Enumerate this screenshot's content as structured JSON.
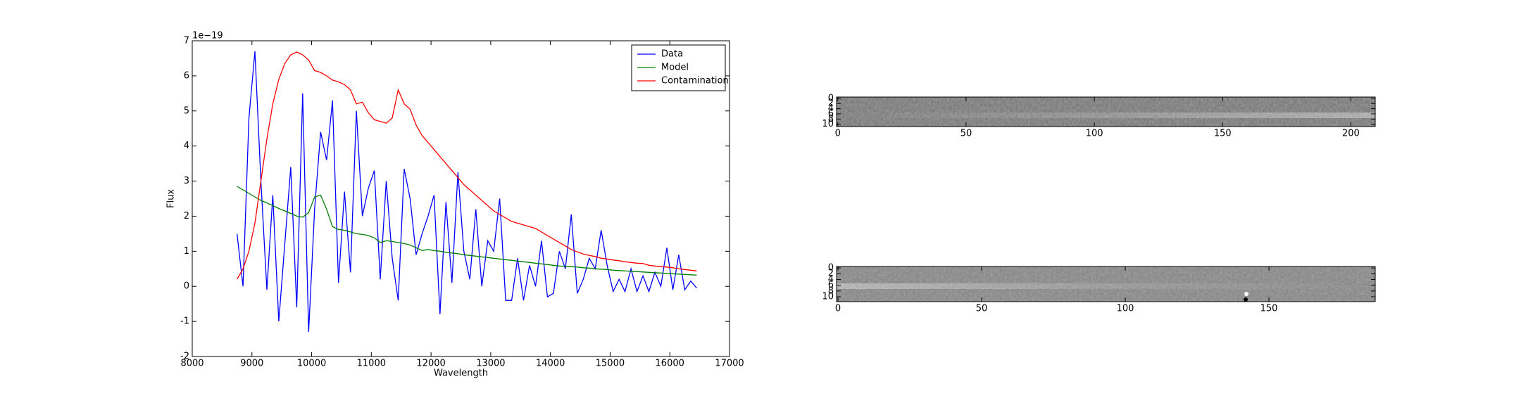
{
  "chart_data": [
    {
      "type": "line",
      "x_label": "Wavelength",
      "y_label": "Flux",
      "y_offset_label": "1e−19",
      "xlim": [
        8000,
        17000
      ],
      "xticks": [
        8000,
        9000,
        10000,
        11000,
        12000,
        13000,
        14000,
        15000,
        16000,
        17000
      ],
      "ylim": [
        -2,
        7
      ],
      "yticks": [
        -2,
        -1,
        0,
        1,
        2,
        3,
        4,
        5,
        6,
        7
      ],
      "legend": "upper right",
      "x": [
        8750,
        8850,
        8950,
        9050,
        9150,
        9250,
        9350,
        9450,
        9550,
        9650,
        9750,
        9850,
        9950,
        10050,
        10150,
        10250,
        10350,
        10450,
        10550,
        10650,
        10750,
        10850,
        10950,
        11050,
        11150,
        11250,
        11350,
        11450,
        11550,
        11650,
        11750,
        11850,
        11950,
        12050,
        12150,
        12250,
        12350,
        12450,
        12550,
        12650,
        12750,
        12850,
        12950,
        13050,
        13150,
        13250,
        13350,
        13450,
        13550,
        13650,
        13750,
        13850,
        13950,
        14050,
        14150,
        14250,
        14350,
        14450,
        14550,
        14650,
        14750,
        14850,
        14950,
        15050,
        15150,
        15250,
        15350,
        15450,
        15550,
        15650,
        15750,
        15850,
        15950,
        16050,
        16150,
        16250,
        16350,
        16450
      ],
      "series": [
        {
          "name": "Data",
          "color": "#0000ff",
          "values": [
            1.5,
            0.0,
            4.8,
            6.7,
            3.0,
            -0.1,
            2.6,
            -1.0,
            1.2,
            3.4,
            -0.6,
            5.5,
            -1.3,
            2.2,
            4.4,
            3.6,
            5.3,
            0.1,
            2.7,
            0.4,
            5.0,
            2.0,
            2.8,
            3.3,
            0.2,
            3.0,
            0.8,
            -0.4,
            3.35,
            2.5,
            0.9,
            1.5,
            2.0,
            2.6,
            -0.8,
            2.4,
            0.1,
            3.25,
            1.0,
            0.2,
            2.2,
            0.0,
            1.3,
            1.0,
            2.5,
            -0.4,
            -0.4,
            0.8,
            -0.4,
            0.6,
            0.0,
            1.3,
            -0.3,
            -0.2,
            1.0,
            0.5,
            2.05,
            -0.2,
            0.2,
            0.8,
            0.5,
            1.6,
            0.6,
            -0.15,
            0.2,
            -0.15,
            0.5,
            -0.15,
            0.3,
            -0.15,
            0.4,
            0.0,
            1.1,
            -0.1,
            0.9,
            -0.1,
            0.15,
            -0.05
          ]
        },
        {
          "name": "Model",
          "color": "#008000",
          "values": [
            2.85,
            2.75,
            2.65,
            2.55,
            2.45,
            2.38,
            2.3,
            2.22,
            2.15,
            2.08,
            2.0,
            1.97,
            2.1,
            2.55,
            2.6,
            2.2,
            1.7,
            1.62,
            1.6,
            1.55,
            1.5,
            1.48,
            1.45,
            1.38,
            1.25,
            1.3,
            1.28,
            1.25,
            1.22,
            1.18,
            1.1,
            1.02,
            1.05,
            1.02,
            1.0,
            0.97,
            0.95,
            0.93,
            0.9,
            0.88,
            0.86,
            0.84,
            0.82,
            0.8,
            0.78,
            0.76,
            0.74,
            0.72,
            0.7,
            0.68,
            0.66,
            0.64,
            0.62,
            0.6,
            0.58,
            0.57,
            0.56,
            0.55,
            0.53,
            0.52,
            0.5,
            0.49,
            0.48,
            0.46,
            0.45,
            0.44,
            0.43,
            0.42,
            0.41,
            0.4,
            0.39,
            0.38,
            0.37,
            0.36,
            0.35,
            0.34,
            0.33,
            0.32
          ]
        },
        {
          "name": "Contamination",
          "color": "#ff0000",
          "values": [
            0.2,
            0.5,
            1.0,
            1.8,
            3.0,
            4.2,
            5.2,
            5.9,
            6.35,
            6.6,
            6.68,
            6.6,
            6.45,
            6.15,
            6.1,
            6.0,
            5.88,
            5.83,
            5.75,
            5.6,
            5.2,
            5.25,
            4.95,
            4.75,
            4.7,
            4.65,
            4.8,
            5.6,
            5.2,
            5.05,
            4.6,
            4.3,
            4.1,
            3.9,
            3.7,
            3.5,
            3.3,
            3.1,
            2.9,
            2.75,
            2.6,
            2.45,
            2.3,
            2.15,
            2.05,
            1.95,
            1.85,
            1.8,
            1.75,
            1.7,
            1.65,
            1.55,
            1.45,
            1.35,
            1.25,
            1.15,
            1.05,
            0.98,
            0.92,
            0.88,
            0.85,
            0.8,
            0.78,
            0.75,
            0.73,
            0.7,
            0.68,
            0.66,
            0.65,
            0.6,
            0.58,
            0.56,
            0.55,
            0.53,
            0.5,
            0.48,
            0.46,
            0.44
          ]
        }
      ]
    },
    {
      "type": "image",
      "xlim": [
        -0.5,
        209.5
      ],
      "xticks": [
        0,
        50,
        100,
        150,
        200
      ],
      "ylim": [
        10.9,
        -0.5
      ],
      "yticks": [
        0,
        2,
        4,
        6,
        8,
        10
      ]
    },
    {
      "type": "image",
      "xlim": [
        -0.5,
        187
      ],
      "xticks": [
        0,
        50,
        100,
        150
      ],
      "ylim": [
        11.7,
        -0.5
      ],
      "yticks": [
        0,
        2,
        4,
        6,
        8,
        10
      ]
    }
  ]
}
